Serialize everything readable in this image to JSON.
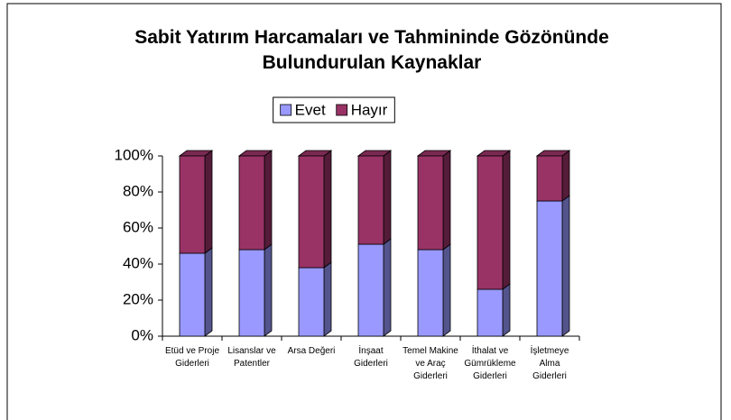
{
  "chart_data": {
    "type": "bar3d_stacked_percent",
    "title": "Sabit Yatırım Harcamaları ve Tahmininde Gözönünde Bulundurulan Kaynaklar",
    "categories": [
      "Etüd ve Proje Giderleri",
      "Lisanslar ve Patentler",
      "Arsa Değeri",
      "İnşaat Giderleri",
      "Temel Makine ve Araç Giderleri",
      "İthalat ve Gümrükleme Giderleri",
      "İşletmeye Alma Giderleri"
    ],
    "series": [
      {
        "name": "Evet",
        "color": "#9999ff",
        "values": [
          46,
          48,
          38,
          51,
          48,
          26,
          75
        ]
      },
      {
        "name": "Hayır",
        "color": "#993366",
        "values": [
          54,
          52,
          62,
          49,
          52,
          74,
          25
        ]
      }
    ],
    "ylim": [
      0,
      100
    ],
    "yticks": [
      {
        "value": 0,
        "label": "0%"
      },
      {
        "value": 20,
        "label": "20%"
      },
      {
        "value": 40,
        "label": "40%"
      },
      {
        "value": 60,
        "label": "60%"
      },
      {
        "value": 80,
        "label": "80%"
      },
      {
        "value": 100,
        "label": "100%"
      }
    ],
    "legend": "top"
  }
}
